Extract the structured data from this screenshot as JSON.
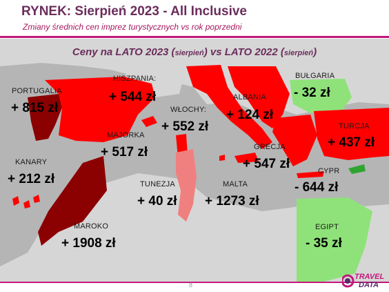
{
  "header": {
    "title": "RYNEK: Sierpień 2023 - All Inclusive",
    "subtitle": "Zmiany średnich cen imprez turystycznych vs rok poprzedni"
  },
  "map_title": {
    "part1": "Ceny na LATO 2023 (",
    "part1_small": "sierpień",
    "part2": ") vs  LATO 2022 (",
    "part2_small": "sierpień",
    "part3": ")"
  },
  "colors": {
    "brand": "#c2187a",
    "title": "#6b2d5c",
    "sea": "#b5b5b5",
    "land": "#d6d6d6",
    "strong_red": "#ff0000",
    "dark_red": "#8b0000",
    "pink": "#f08080",
    "green": "#8fe27a",
    "dark_green": "#2fa52f"
  },
  "chart_data": {
    "type": "map",
    "unit": "zł",
    "points": [
      {
        "name": "PORTUGALIA",
        "label": "+ 815 zł",
        "value": 815
      },
      {
        "name": "HISZPANIA:",
        "label": "+ 544 zł",
        "value": 544
      },
      {
        "name": "MAJORKA",
        "label": "+ 517 zł",
        "value": 517
      },
      {
        "name": "WŁOCHY:",
        "label": "+ 552 zł",
        "value": 552
      },
      {
        "name": "ALBANIA",
        "label": "+ 124 zł",
        "value": 124
      },
      {
        "name": "BUŁGARIA",
        "label": "- 32 zł",
        "value": -32
      },
      {
        "name": "TURCJA",
        "label": "+ 437 zł",
        "value": 437
      },
      {
        "name": "GRECJA",
        "label": "+ 547 zł",
        "value": 547
      },
      {
        "name": "CYPR",
        "label": "- 644 zł",
        "value": -644
      },
      {
        "name": "KANARY",
        "label": "+ 212 zł",
        "value": 212
      },
      {
        "name": "TUNEZJA",
        "label": "+ 40 zł",
        "value": 40
      },
      {
        "name": "MALTA",
        "label": "+ 1273 zł",
        "value": 1273
      },
      {
        "name": "MAROKO",
        "label": "+ 1908 zł",
        "value": 1908
      },
      {
        "name": "EGIPT",
        "label": "- 35 zł",
        "value": -35
      }
    ]
  },
  "footer": {
    "page_number": "8",
    "logo_line1": "TRAVEL",
    "logo_line2": "DATA"
  }
}
